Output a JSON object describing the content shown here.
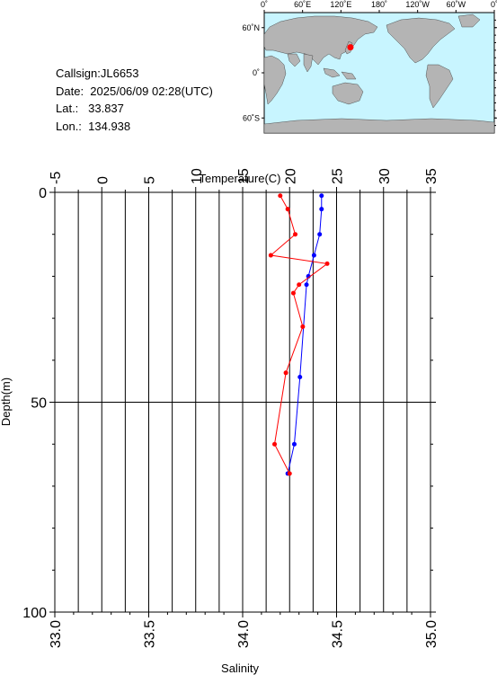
{
  "info": {
    "callsign": "Callsign:JL6653",
    "date": "Date:  2025/06/09 02:28(UTC)",
    "lat": "Lat.:   33.837",
    "lon": "Lon.:  134.938"
  },
  "map": {
    "top_labels": [
      "0˚",
      "60˚E",
      "120˚E",
      "180˚",
      "120˚W",
      "60˚W",
      "0˚"
    ],
    "side_labels": [
      "60˚N",
      "0˚",
      "60˚S"
    ],
    "ocean_color": "#c8f5ff",
    "land_color": "#b4b4b4",
    "marker_color": "#ff0000",
    "marker": {
      "lat": 33.837,
      "lon": 134.938
    }
  },
  "chart_data": {
    "type": "line",
    "x_top_label": "Temperature(C)",
    "x_bottom_label": "Salinity",
    "ylabel": "Depth(m)",
    "temperature_ticks": [
      "-5",
      "0",
      "5",
      "10",
      "15",
      "20",
      "25",
      "30",
      "35"
    ],
    "salinity_ticks": [
      "33.0",
      "33.5",
      "34.0",
      "34.5",
      "35.0"
    ],
    "depth_ticks": [
      "0",
      "50",
      "100"
    ],
    "temperature_range": [
      -5,
      35
    ],
    "salinity_range": [
      33.0,
      35.0
    ],
    "depth_range": [
      0,
      100
    ],
    "series": [
      {
        "axis": "temperature",
        "color": "#0000ff",
        "depth": [
          0.8,
          4,
          10,
          15,
          20,
          22,
          44,
          60,
          67
        ],
        "values": [
          23.4,
          23.4,
          23.2,
          22.6,
          22.0,
          21.8,
          21.1,
          20.5,
          19.8
        ]
      },
      {
        "axis": "salinity",
        "color": "#ff0000",
        "depth": [
          0.8,
          4,
          10,
          15,
          17,
          22,
          24,
          32,
          43,
          60,
          67
        ],
        "values": [
          34.2,
          34.24,
          34.28,
          34.15,
          34.45,
          34.3,
          34.27,
          34.32,
          34.23,
          34.17,
          34.25
        ]
      }
    ]
  }
}
